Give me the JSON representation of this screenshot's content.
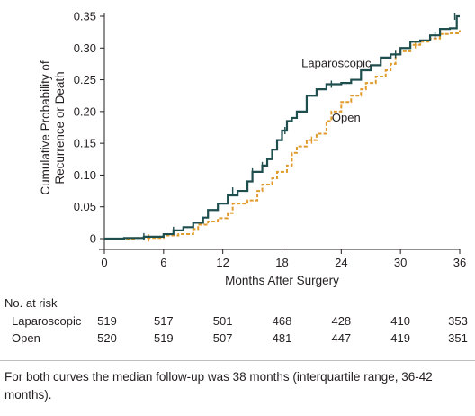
{
  "chart_data": {
    "type": "line",
    "xlabel": "Months After Surgery",
    "ylabel": "Cumulative Probability of Recurrence or Death",
    "ylabel_lines": [
      "Cumulative Probability of",
      "Recurrence or Death"
    ],
    "xlim": [
      0,
      36
    ],
    "ylim": [
      0,
      0.35
    ],
    "x_ticks": [
      0,
      6,
      12,
      18,
      24,
      30,
      36
    ],
    "y_ticks": [
      0,
      0.05,
      0.1,
      0.15,
      0.2,
      0.25,
      0.3,
      0.35
    ],
    "y_tick_labels": [
      "0",
      "0.05",
      "0.10",
      "0.15",
      "0.20",
      "0.25",
      "0.30",
      "0.35"
    ],
    "grid": false,
    "series": [
      {
        "name": "Laparoscopic",
        "color": "#1f4e4e",
        "style": "solid",
        "steps": [
          [
            0,
            0
          ],
          [
            2,
            0.001
          ],
          [
            4,
            0.003
          ],
          [
            6,
            0.007
          ],
          [
            7,
            0.013
          ],
          [
            8,
            0.018
          ],
          [
            9,
            0.025
          ],
          [
            10,
            0.033
          ],
          [
            10.5,
            0.045
          ],
          [
            11.5,
            0.055
          ],
          [
            12.5,
            0.068
          ],
          [
            13.5,
            0.075
          ],
          [
            14.5,
            0.09
          ],
          [
            15,
            0.105
          ],
          [
            16,
            0.115
          ],
          [
            16.5,
            0.125
          ],
          [
            17,
            0.14
          ],
          [
            17.5,
            0.155
          ],
          [
            18,
            0.17
          ],
          [
            18.5,
            0.185
          ],
          [
            19,
            0.19
          ],
          [
            19.5,
            0.2
          ],
          [
            20.5,
            0.225
          ],
          [
            21.5,
            0.235
          ],
          [
            22.5,
            0.243
          ],
          [
            24,
            0.245
          ],
          [
            25,
            0.25
          ],
          [
            26,
            0.265
          ],
          [
            27,
            0.273
          ],
          [
            28,
            0.285
          ],
          [
            29,
            0.29
          ],
          [
            30,
            0.3
          ],
          [
            31,
            0.31
          ],
          [
            32,
            0.312
          ],
          [
            33,
            0.32
          ],
          [
            34,
            0.33
          ],
          [
            35,
            0.331
          ],
          [
            35.7,
            0.35
          ]
        ],
        "censor_marks": [
          [
            4,
            0.003
          ],
          [
            7,
            0.013
          ],
          [
            13,
            0.075
          ],
          [
            15,
            0.105
          ],
          [
            16,
            0.115
          ],
          [
            18.3,
            0.17
          ],
          [
            23,
            0.243
          ],
          [
            29.5,
            0.29
          ],
          [
            33.5,
            0.32
          ],
          [
            35.5,
            0.35
          ]
        ]
      },
      {
        "name": "Open",
        "color": "#e09b2d",
        "style": "dashed",
        "steps": [
          [
            0,
            0
          ],
          [
            3,
            0.001
          ],
          [
            6,
            0.005
          ],
          [
            7.5,
            0.007
          ],
          [
            9,
            0.015
          ],
          [
            9.5,
            0.022
          ],
          [
            10.5,
            0.027
          ],
          [
            11.5,
            0.032
          ],
          [
            12.5,
            0.04
          ],
          [
            13,
            0.055
          ],
          [
            14.5,
            0.06
          ],
          [
            15.5,
            0.075
          ],
          [
            16,
            0.085
          ],
          [
            17,
            0.095
          ],
          [
            17.5,
            0.105
          ],
          [
            18.5,
            0.115
          ],
          [
            19,
            0.135
          ],
          [
            19.5,
            0.145
          ],
          [
            20.5,
            0.155
          ],
          [
            21.5,
            0.165
          ],
          [
            22.5,
            0.185
          ],
          [
            23,
            0.2
          ],
          [
            24,
            0.215
          ],
          [
            25,
            0.225
          ],
          [
            26,
            0.235
          ],
          [
            26.5,
            0.245
          ],
          [
            27.5,
            0.255
          ],
          [
            28.5,
            0.265
          ],
          [
            29,
            0.275
          ],
          [
            29.5,
            0.29
          ],
          [
            30,
            0.295
          ],
          [
            31,
            0.305
          ],
          [
            32,
            0.31
          ],
          [
            33,
            0.315
          ],
          [
            34,
            0.322
          ],
          [
            35,
            0.323
          ],
          [
            36,
            0.328
          ]
        ],
        "censor_marks": [
          [
            4.5,
            0.001
          ],
          [
            21,
            0.155
          ],
          [
            29.5,
            0.29
          ],
          [
            31.5,
            0.305
          ],
          [
            34,
            0.322
          ]
        ]
      }
    ],
    "annotations": [
      {
        "text": "Laparoscopic",
        "x": 23.5,
        "y": 0.27
      },
      {
        "text": "Open",
        "x": 24.5,
        "y": 0.184
      }
    ]
  },
  "risk_table": {
    "title": "No. at risk",
    "x_months": [
      0,
      6,
      12,
      18,
      24,
      30,
      36
    ],
    "rows": [
      {
        "label": "Laparoscopic",
        "values": [
          "519",
          "517",
          "501",
          "468",
          "428",
          "410",
          "353"
        ]
      },
      {
        "label": "Open",
        "values": [
          "520",
          "519",
          "507",
          "481",
          "447",
          "419",
          "351"
        ]
      }
    ]
  },
  "footnote": "For both curves the median follow-up was 38 months (interquartile range, 36-42 months)."
}
